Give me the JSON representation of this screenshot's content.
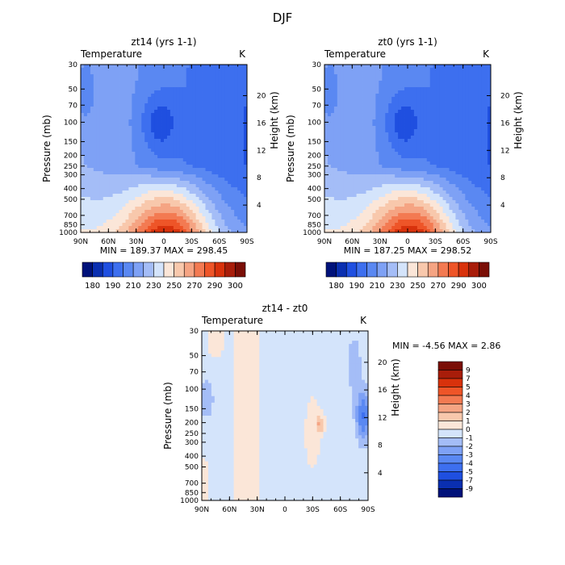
{
  "figure": {
    "title": "DJF"
  },
  "chart_data": [
    {
      "type": "heatmap",
      "id": "p1",
      "title": "zt14 (yrs 1-1)",
      "left_label": "Temperature",
      "right_label": "K",
      "ylabel": "Pressure (mb)",
      "ylabel_right": "Height (km)",
      "x_ticks": [
        "90N",
        "60N",
        "30N",
        "0",
        "30S",
        "60S",
        "90S"
      ],
      "xlim": [
        90,
        -90
      ],
      "y_ticks": [
        "30",
        "50",
        "70",
        "100",
        "150",
        "200",
        "250",
        "300",
        "400",
        "500",
        "700",
        "850",
        "1000"
      ],
      "ylim": [
        30,
        1000
      ],
      "height_ticks": [
        "4",
        "8",
        "12",
        "16",
        "20"
      ],
      "min_max": "MIN = 189.37   MAX = 298.45",
      "field": "abs",
      "colorbar": {
        "labels": [
          "180",
          "190",
          "210",
          "230",
          "250",
          "270",
          "290",
          "300"
        ],
        "colors": [
          "#00127a",
          "#0a2fb0",
          "#1f4fe0",
          "#3d6fef",
          "#5a88f2",
          "#7ea1f5",
          "#a4bdf7",
          "#d4e4fb",
          "#fbe6d8",
          "#f8c8ac",
          "#f5a483",
          "#f37a52",
          "#ee5528",
          "#d8320c",
          "#a81d0a",
          "#7a0e06"
        ]
      }
    },
    {
      "type": "heatmap",
      "id": "p2",
      "title": "zt0 (yrs 1-1)",
      "left_label": "Temperature",
      "right_label": "K",
      "ylabel": "Pressure (mb)",
      "ylabel_right": "Height (km)",
      "x_ticks": [
        "90N",
        "60N",
        "30N",
        "0",
        "30S",
        "60S",
        "90S"
      ],
      "xlim": [
        90,
        -90
      ],
      "y_ticks": [
        "30",
        "50",
        "70",
        "100",
        "150",
        "200",
        "250",
        "300",
        "400",
        "500",
        "700",
        "850",
        "1000"
      ],
      "ylim": [
        30,
        1000
      ],
      "height_ticks": [
        "4",
        "8",
        "12",
        "16",
        "20"
      ],
      "min_max": "MIN = 187.25   MAX = 298.52",
      "field": "abs",
      "colorbar": {
        "labels": [
          "180",
          "190",
          "210",
          "230",
          "250",
          "270",
          "290",
          "300"
        ],
        "colors": [
          "#00127a",
          "#0a2fb0",
          "#1f4fe0",
          "#3d6fef",
          "#5a88f2",
          "#7ea1f5",
          "#a4bdf7",
          "#d4e4fb",
          "#fbe6d8",
          "#f8c8ac",
          "#f5a483",
          "#f37a52",
          "#ee5528",
          "#d8320c",
          "#a81d0a",
          "#7a0e06"
        ]
      }
    },
    {
      "type": "heatmap",
      "id": "p3",
      "title": "zt14 - zt0",
      "left_label": "Temperature",
      "right_label": "K",
      "ylabel": "Pressure (mb)",
      "ylabel_right": "Height (km)",
      "x_ticks": [
        "90N",
        "60N",
        "30N",
        "0",
        "30S",
        "60S",
        "90S"
      ],
      "xlim": [
        90,
        -90
      ],
      "y_ticks": [
        "30",
        "50",
        "70",
        "100",
        "150",
        "200",
        "250",
        "300",
        "400",
        "500",
        "700",
        "850",
        "1000"
      ],
      "ylim": [
        30,
        1000
      ],
      "height_ticks": [
        "4",
        "8",
        "12",
        "16",
        "20"
      ],
      "min_max": "MIN =   -4.56   MAX =    2.86",
      "field": "diff",
      "colorbar": {
        "labels": [
          "9",
          "7",
          "5",
          "4",
          "3",
          "2",
          "1",
          "0",
          "-1",
          "-2",
          "-3",
          "-4",
          "-5",
          "-7",
          "-9"
        ],
        "colors": [
          "#7a0e06",
          "#a81d0a",
          "#d8320c",
          "#ee5528",
          "#f37a52",
          "#f5a483",
          "#f8c8ac",
          "#fbe6d8",
          "#d4e4fb",
          "#a4bdf7",
          "#7ea1f5",
          "#5a88f2",
          "#3d6fef",
          "#1f4fe0",
          "#0a2fb0",
          "#00127a"
        ]
      }
    }
  ]
}
